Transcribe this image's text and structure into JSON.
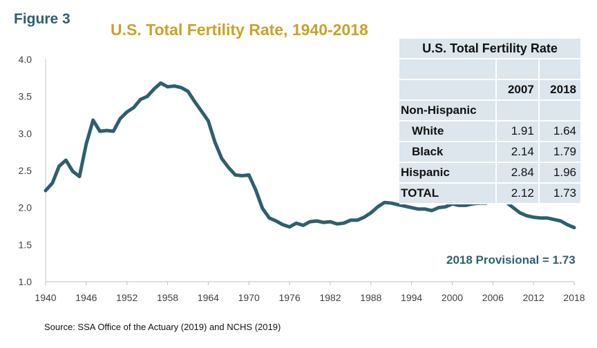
{
  "figure_label": "Figure 3",
  "chart_data": {
    "type": "line",
    "title": "U.S. Total Fertility Rate, 1940-2018",
    "xlabel": "",
    "ylabel": "",
    "xlim": [
      1940,
      2018
    ],
    "ylim": [
      1.0,
      4.0
    ],
    "yticks": [
      "1.0",
      "1.5",
      "2.0",
      "2.5",
      "3.0",
      "3.5",
      "4.0"
    ],
    "xticks": [
      "1940",
      "1946",
      "1952",
      "1958",
      "1964",
      "1970",
      "1976",
      "1982",
      "1988",
      "1994",
      "2000",
      "2006",
      "2012",
      "2018"
    ],
    "line_color": "#2e5f6e",
    "series": [
      {
        "x": [
          1940,
          1941,
          1942,
          1943,
          1944,
          1945,
          1946,
          1947,
          1948,
          1949,
          1950,
          1951,
          1952,
          1953,
          1954,
          1955,
          1956,
          1957,
          1958,
          1959,
          1960,
          1961,
          1962,
          1963,
          1964,
          1965,
          1966,
          1967,
          1968,
          1969,
          1970,
          1971,
          1972,
          1973,
          1974,
          1975,
          1976,
          1977,
          1978,
          1979,
          1980,
          1981,
          1982,
          1983,
          1984,
          1985,
          1986,
          1987,
          1988,
          1989,
          1990,
          1991,
          1992,
          1993,
          1994,
          1995,
          1996,
          1997,
          1998,
          1999,
          2000,
          2001,
          2002,
          2003,
          2004,
          2005,
          2006,
          2007,
          2008,
          2009,
          2010,
          2011,
          2012,
          2013,
          2014,
          2015,
          2016,
          2017,
          2018
        ],
        "y": [
          2.23,
          2.33,
          2.56,
          2.64,
          2.49,
          2.42,
          2.86,
          3.18,
          3.03,
          3.04,
          3.03,
          3.2,
          3.29,
          3.35,
          3.46,
          3.5,
          3.6,
          3.68,
          3.63,
          3.64,
          3.62,
          3.57,
          3.43,
          3.3,
          3.17,
          2.88,
          2.66,
          2.54,
          2.44,
          2.43,
          2.44,
          2.24,
          1.99,
          1.86,
          1.82,
          1.77,
          1.74,
          1.79,
          1.76,
          1.81,
          1.82,
          1.8,
          1.81,
          1.78,
          1.79,
          1.83,
          1.83,
          1.87,
          1.93,
          2.01,
          2.07,
          2.06,
          2.04,
          2.02,
          2.0,
          1.98,
          1.98,
          1.96,
          2.0,
          2.01,
          2.05,
          2.03,
          2.03,
          2.05,
          2.06,
          2.06,
          2.11,
          2.12,
          2.07,
          2.0,
          1.93,
          1.89,
          1.87,
          1.86,
          1.86,
          1.84,
          1.82,
          1.77,
          1.73
        ]
      }
    ]
  },
  "inset_table": {
    "title": "U.S. Total Fertility Rate",
    "col_2007": "2007",
    "col_2018": "2018",
    "group_label": "Non-Hispanic",
    "rows": [
      {
        "label": "White",
        "v2007": "1.91",
        "v2018": "1.64"
      },
      {
        "label": "Black",
        "v2007": "2.14",
        "v2018": "1.79"
      },
      {
        "label": "Hispanic",
        "v2007": "2.84",
        "v2018": "1.96"
      },
      {
        "label": "TOTAL",
        "v2007": "2.12",
        "v2018": "1.73"
      }
    ]
  },
  "provisional_note": "2018 Provisional = 1.73",
  "source_note": "Source: SSA Office of the Actuary (2019)  and NCHS (2019)"
}
